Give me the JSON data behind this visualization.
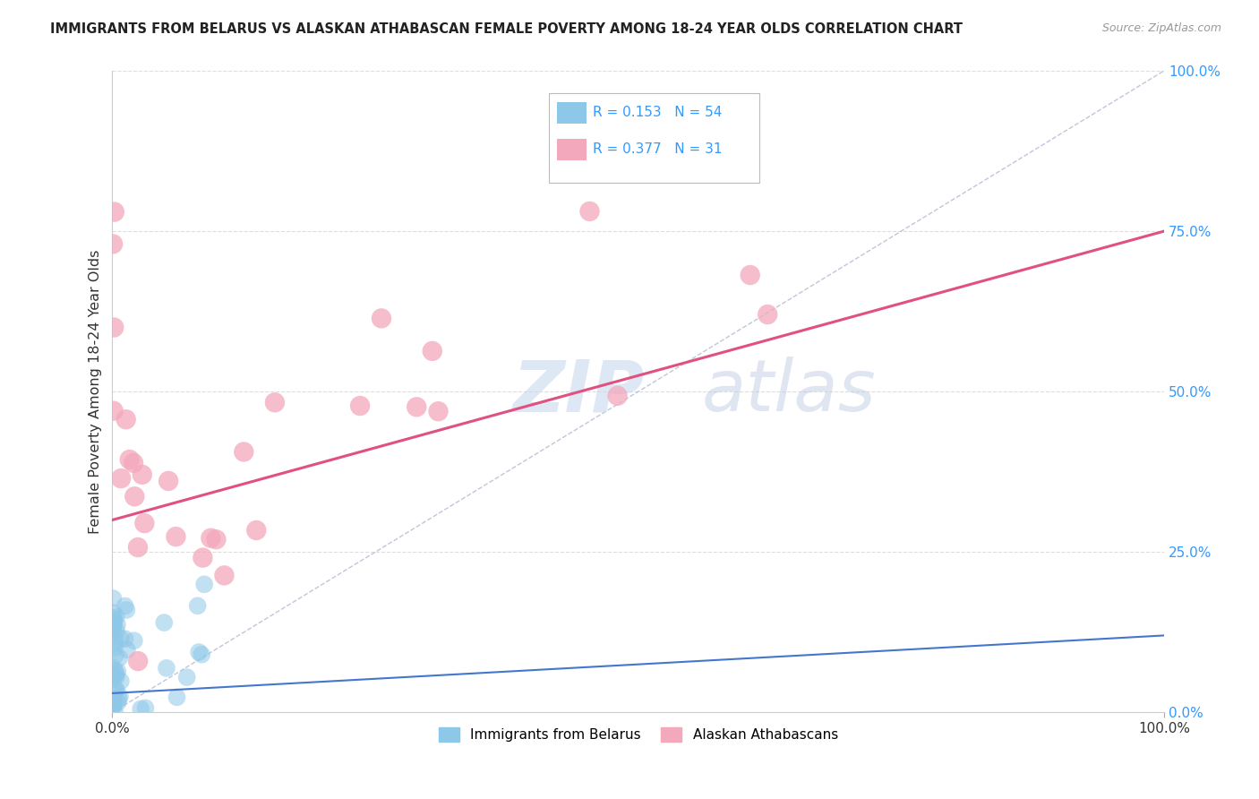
{
  "title": "IMMIGRANTS FROM BELARUS VS ALASKAN ATHABASCAN FEMALE POVERTY AMONG 18-24 YEAR OLDS CORRELATION CHART",
  "source": "Source: ZipAtlas.com",
  "ylabel": "Female Poverty Among 18-24 Year Olds",
  "xlim": [
    0,
    1.0
  ],
  "ylim": [
    0,
    1.0
  ],
  "xtick_labels": [
    "0.0%",
    "100.0%"
  ],
  "ytick_labels": [
    "0.0%",
    "25.0%",
    "50.0%",
    "75.0%",
    "100.0%"
  ],
  "ytick_vals": [
    0.0,
    0.25,
    0.5,
    0.75,
    1.0
  ],
  "legend_entries": [
    {
      "label": "Immigrants from Belarus",
      "color": "#8ec8e8"
    },
    {
      "label": "Alaskan Athabascans",
      "color": "#f4a8bc"
    }
  ],
  "legend_r_blue": "0.153",
  "legend_n_blue": "54",
  "legend_r_pink": "0.377",
  "legend_n_pink": "31",
  "watermark_zip": "ZIP",
  "watermark_atlas": "atlas",
  "blue_color": "#8ec8e8",
  "pink_color": "#f4a8bc",
  "pink_line_color": "#e05080",
  "blue_line_color": "#4477cc",
  "diag_line_color": "#b0b8d0",
  "grid_color": "#dddddd",
  "background_color": "#ffffff",
  "blue_line_x0": 0.0,
  "blue_line_y0": 0.03,
  "blue_line_x1": 1.0,
  "blue_line_y1": 0.12,
  "pink_line_x0": 0.0,
  "pink_line_y0": 0.3,
  "pink_line_x1": 1.0,
  "pink_line_y1": 0.75
}
